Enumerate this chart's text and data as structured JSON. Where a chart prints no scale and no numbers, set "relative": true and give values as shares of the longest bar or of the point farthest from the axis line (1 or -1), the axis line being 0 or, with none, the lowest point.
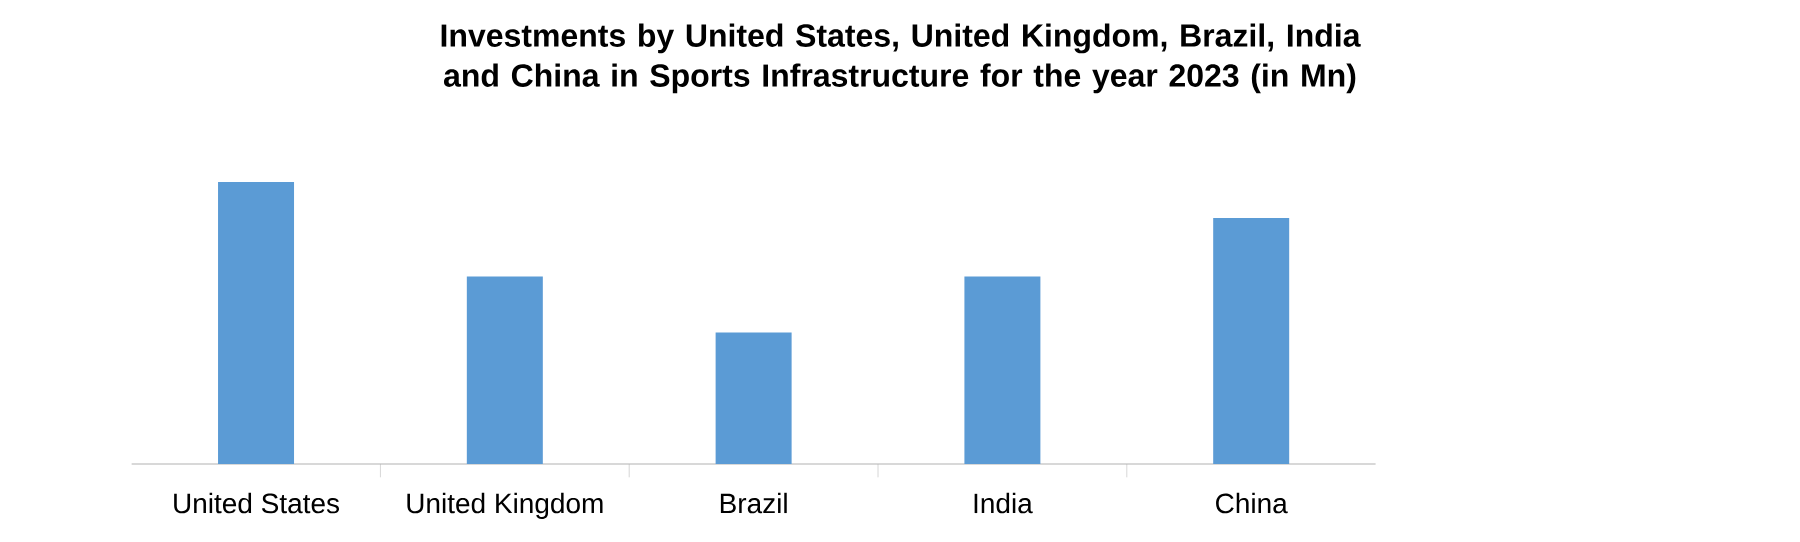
{
  "chart_data": {
    "type": "bar",
    "title": "Investments by United States, United Kingdom, Brazil, India and China in Sports Infrastructure for the year 2023 (in Mn)",
    "categories": [
      "United States",
      "United Kingdom",
      "Brazil",
      "India",
      "China"
    ],
    "values": [
      1,
      0.665,
      0.466,
      0.665,
      0.872
    ],
    "color": "#5b9bd5",
    "relative": true
  }
}
